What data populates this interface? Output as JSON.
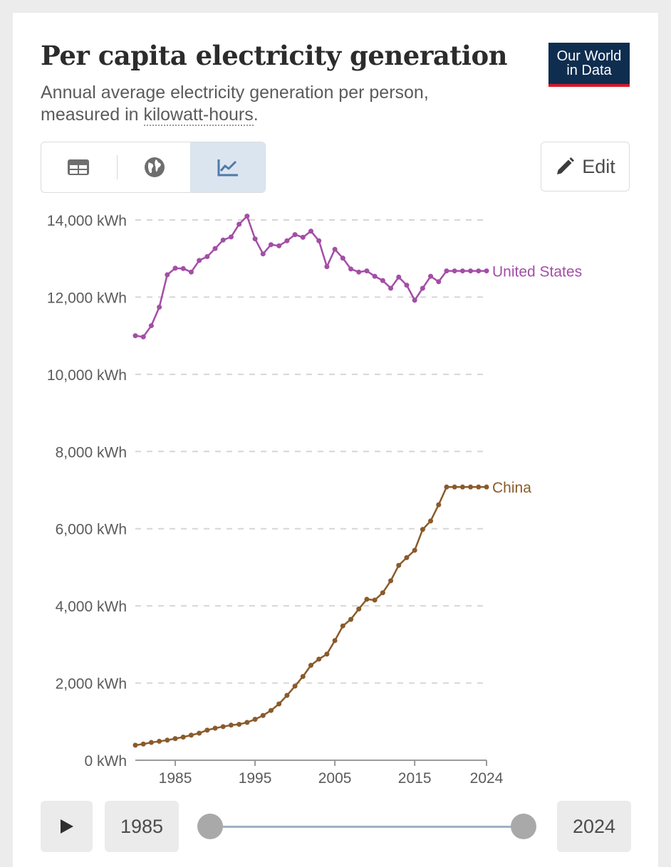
{
  "header": {
    "title": "Per capita electricity generation",
    "subtitle_line1": "Annual average electricity generation per person,",
    "subtitle_prefix": "measured in ",
    "subtitle_link": "kilowatt-hours",
    "subtitle_suffix": "."
  },
  "logo": {
    "line1": "Our World",
    "line2": "in Data"
  },
  "toolbar": {
    "edit_label": "Edit"
  },
  "icons": {
    "table": "table-icon",
    "map": "globe-icon",
    "chart": "line-chart-icon",
    "edit": "pencil-icon",
    "play": "play-icon"
  },
  "colors": {
    "us": "#a34ea6",
    "china": "#8a5a2b",
    "grid": "#d6d6d6",
    "axis_text": "#5b5b5b"
  },
  "timeline": {
    "start_label": "1985",
    "end_label": "2024"
  },
  "chart_data": {
    "type": "line",
    "title": "Per capita electricity generation",
    "ylim": [
      0,
      14000
    ],
    "xlim": [
      1980,
      2024
    ],
    "yticks": [
      {
        "value": 0,
        "label": "0 kWh"
      },
      {
        "value": 2000,
        "label": "2,000 kWh"
      },
      {
        "value": 4000,
        "label": "4,000 kWh"
      },
      {
        "value": 6000,
        "label": "6,000 kWh"
      },
      {
        "value": 8000,
        "label": "8,000 kWh"
      },
      {
        "value": 10000,
        "label": "10,000 kWh"
      },
      {
        "value": 12000,
        "label": "12,000 kWh"
      },
      {
        "value": 14000,
        "label": "14,000 kWh"
      }
    ],
    "xticks": [
      {
        "value": 1985,
        "label": "1985"
      },
      {
        "value": 1995,
        "label": "1995"
      },
      {
        "value": 2005,
        "label": "2005"
      },
      {
        "value": 2015,
        "label": "2015"
      },
      {
        "value": 2024,
        "label": "2024"
      }
    ],
    "grid": true,
    "series": [
      {
        "name": "United States",
        "color": "#a34ea6",
        "x": [
          1980,
          1981,
          1982,
          1983,
          1984,
          1985,
          1986,
          1987,
          1988,
          1989,
          1990,
          1991,
          1992,
          1993,
          1994,
          1995,
          1996,
          1997,
          1998,
          1999,
          2000,
          2001,
          2002,
          2003,
          2004,
          2005,
          2006,
          2007,
          2008,
          2009,
          2010,
          2011,
          2012,
          2013,
          2014,
          2015,
          2016,
          2017,
          2018,
          2019,
          2020,
          2021,
          2022,
          2023,
          2024
        ],
        "values": [
          11000,
          10970,
          11260,
          11740,
          12580,
          12750,
          12740,
          12650,
          12950,
          13050,
          13260,
          13480,
          13560,
          13890,
          14100,
          13510,
          13120,
          13360,
          13330,
          13460,
          13620,
          13550,
          13710,
          13460,
          12790,
          13240,
          13010,
          12730,
          12650,
          12680,
          12540,
          12430,
          12230,
          12520,
          12310,
          11920,
          12230,
          12540,
          12400,
          12680,
          12680,
          12680,
          12680,
          12680,
          12680
        ]
      },
      {
        "name": "China",
        "color": "#8a5a2b",
        "x": [
          1980,
          1981,
          1982,
          1983,
          1984,
          1985,
          1986,
          1987,
          1988,
          1989,
          1990,
          1991,
          1992,
          1993,
          1994,
          1995,
          1996,
          1997,
          1998,
          1999,
          2000,
          2001,
          2002,
          2003,
          2004,
          2005,
          2006,
          2007,
          2008,
          2009,
          2010,
          2011,
          2012,
          2013,
          2014,
          2015,
          2016,
          2017,
          2018,
          2019,
          2020,
          2021,
          2022,
          2023,
          2024
        ],
        "values": [
          390,
          420,
          460,
          490,
          520,
          560,
          600,
          650,
          700,
          780,
          830,
          870,
          910,
          930,
          980,
          1060,
          1160,
          1290,
          1460,
          1680,
          1920,
          2170,
          2460,
          2620,
          2750,
          3100,
          3480,
          3650,
          3920,
          4170,
          4150,
          4340,
          4650,
          5050,
          5250,
          5440,
          5980,
          6200,
          6620,
          7080,
          7080,
          7080,
          7080,
          7080,
          7080
        ]
      }
    ]
  }
}
